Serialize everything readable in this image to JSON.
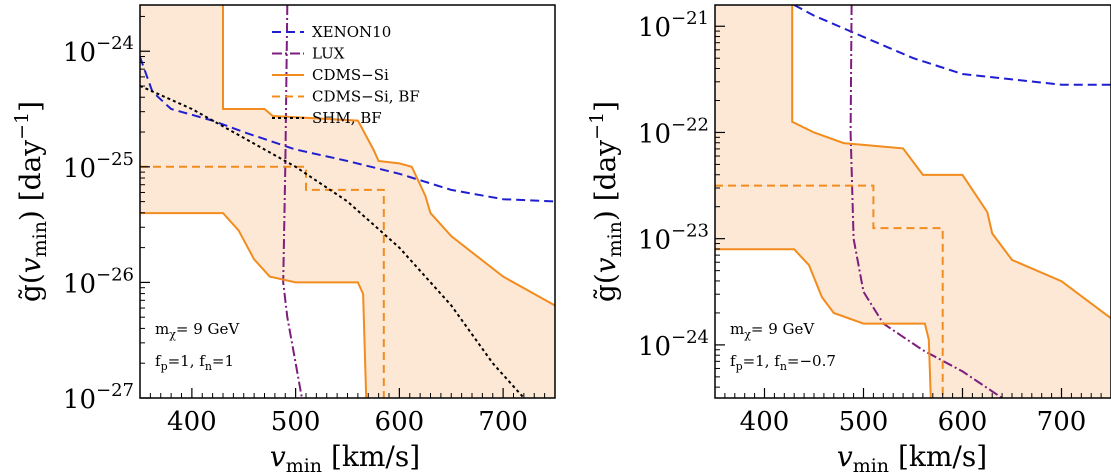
{
  "chart_data": [
    {
      "type": "line",
      "xlabel": "v_min [km/s]",
      "ylabel": "g̃(v_min) [day^-1]",
      "xlim": [
        350,
        750
      ],
      "ylim_log10": [
        -27,
        -23.6
      ],
      "y_scale": "log",
      "x_ticks": [
        400,
        500,
        600,
        700
      ],
      "y_ticks": [
        {
          "exp": -24,
          "base": "10",
          "sup": "−24"
        },
        {
          "exp": -25,
          "base": "10",
          "sup": "−25"
        },
        {
          "exp": -26,
          "base": "10",
          "sup": "−26"
        },
        {
          "exp": -27,
          "base": "10",
          "sup": "−27"
        }
      ],
      "legend_position": "top-right",
      "annotations": [
        "m_χ= 9 GeV",
        "f_p=1, f_n=1"
      ],
      "bands": [
        {
          "name": "CDMS-Si",
          "color": "#fde8d6",
          "upper": [
            [
              350,
              -23.6
            ],
            [
              430,
              -23.6
            ],
            [
              430,
              -24.5
            ],
            [
              470,
              -24.5
            ],
            [
              478,
              -24.56
            ],
            [
              560,
              -24.6
            ],
            [
              575,
              -24.85
            ],
            [
              580,
              -24.95
            ],
            [
              600,
              -24.97
            ],
            [
              612,
              -25.0
            ],
            [
              625,
              -25.25
            ],
            [
              630,
              -25.4
            ],
            [
              650,
              -25.6
            ],
            [
              700,
              -25.95
            ],
            [
              750,
              -26.2
            ]
          ],
          "lower": [
            [
              350,
              -25.4
            ],
            [
              430,
              -25.4
            ],
            [
              445,
              -25.55
            ],
            [
              460,
              -25.8
            ],
            [
              475,
              -25.95
            ],
            [
              500,
              -26.0
            ],
            [
              560,
              -26.0
            ],
            [
              565,
              -26.1
            ],
            [
              568,
              -27.0
            ],
            [
              750,
              -27.0
            ]
          ]
        }
      ],
      "series": [
        {
          "name": "XENON10",
          "color": "#1f1fd0",
          "dash": "9,5",
          "points": [
            [
              350,
              -24.05
            ],
            [
              362,
              -24.35
            ],
            [
              380,
              -24.5
            ],
            [
              420,
              -24.6
            ],
            [
              450,
              -24.7
            ],
            [
              500,
              -24.85
            ],
            [
              550,
              -24.95
            ],
            [
              600,
              -25.06
            ],
            [
              650,
              -25.2
            ],
            [
              700,
              -25.28
            ],
            [
              750,
              -25.3
            ]
          ]
        },
        {
          "name": "LUX",
          "color": "#7d1d7d",
          "dash": "10,3,2,3",
          "points": [
            [
              492,
              -23.6
            ],
            [
              490,
              -25.0
            ],
            [
              488,
              -26.0
            ],
            [
              492,
              -26.3
            ],
            [
              498,
              -26.6
            ],
            [
              506,
              -27.0
            ]
          ]
        },
        {
          "name": "CDMS-Si",
          "color": "#f28c1e",
          "dash": "",
          "steps": [
            [
              [
                430,
                -23.6
              ],
              [
                430,
                -24.5
              ],
              [
                470,
                -24.5
              ],
              [
                478,
                -24.56
              ],
              [
                560,
                -24.6
              ],
              [
                575,
                -24.85
              ],
              [
                580,
                -24.95
              ],
              [
                600,
                -24.97
              ],
              [
                612,
                -25.0
              ],
              [
                625,
                -25.25
              ],
              [
                630,
                -25.4
              ],
              [
                650,
                -25.6
              ],
              [
                700,
                -25.95
              ],
              [
                750,
                -26.2
              ]
            ],
            [
              [
                350,
                -25.4
              ],
              [
                430,
                -25.4
              ],
              [
                445,
                -25.55
              ],
              [
                460,
                -25.8
              ],
              [
                475,
                -25.95
              ],
              [
                500,
                -26.0
              ],
              [
                560,
                -26.0
              ],
              [
                565,
                -26.1
              ],
              [
                568,
                -27.0
              ]
            ]
          ]
        },
        {
          "name": "CDMS-Si, BF",
          "color": "#f28c1e",
          "dash": "8,5",
          "steps": [
            [
              [
                350,
                -25.0
              ],
              [
                510,
                -25.0
              ],
              [
                510,
                -25.2
              ],
              [
                585,
                -25.2
              ],
              [
                585,
                -27.0
              ]
            ]
          ]
        },
        {
          "name": "SHM, BF",
          "color": "#000000",
          "dash": "3,3",
          "points": [
            [
              350,
              -24.3
            ],
            [
              400,
              -24.5
            ],
            [
              450,
              -24.75
            ],
            [
              500,
              -25.0
            ],
            [
              550,
              -25.3
            ],
            [
              600,
              -25.7
            ],
            [
              650,
              -26.2
            ],
            [
              690,
              -26.7
            ],
            [
              720,
              -27.0
            ]
          ]
        }
      ]
    },
    {
      "type": "line",
      "xlabel": "v_min [km/s]",
      "ylabel": "g̃(v_min) [day^-1]",
      "xlim": [
        350,
        750
      ],
      "ylim_log10": [
        -24.5,
        -20.8
      ],
      "y_scale": "log",
      "x_ticks": [
        400,
        500,
        600,
        700
      ],
      "y_ticks": [
        {
          "exp": -21,
          "base": "10",
          "sup": "−21"
        },
        {
          "exp": -22,
          "base": "10",
          "sup": "−22"
        },
        {
          "exp": -23,
          "base": "10",
          "sup": "−23"
        },
        {
          "exp": -24,
          "base": "10",
          "sup": "−24"
        }
      ],
      "annotations": [
        "m_χ= 9 GeV",
        "f_p=1, f_n=−0.7"
      ],
      "bands": [
        {
          "name": "CDMS-Si",
          "color": "#fde8d6",
          "upper": [
            [
              350,
              -20.8
            ],
            [
              428,
              -20.8
            ],
            [
              428,
              -21.9
            ],
            [
              450,
              -22.0
            ],
            [
              480,
              -22.1
            ],
            [
              540,
              -22.15
            ],
            [
              560,
              -22.4
            ],
            [
              600,
              -22.4
            ],
            [
              625,
              -22.75
            ],
            [
              630,
              -22.95
            ],
            [
              650,
              -23.2
            ],
            [
              700,
              -23.4
            ],
            [
              750,
              -23.75
            ]
          ],
          "lower": [
            [
              350,
              -23.1
            ],
            [
              430,
              -23.1
            ],
            [
              445,
              -23.25
            ],
            [
              458,
              -23.55
            ],
            [
              470,
              -23.7
            ],
            [
              500,
              -23.8
            ],
            [
              562,
              -23.8
            ],
            [
              566,
              -23.95
            ],
            [
              568,
              -24.5
            ],
            [
              750,
              -24.5
            ]
          ]
        }
      ],
      "series": [
        {
          "name": "XENON10",
          "color": "#1f1fd0",
          "dash": "9,5",
          "points": [
            [
              430,
              -20.8
            ],
            [
              450,
              -20.9
            ],
            [
              500,
              -21.1
            ],
            [
              550,
              -21.3
            ],
            [
              600,
              -21.45
            ],
            [
              650,
              -21.5
            ],
            [
              700,
              -21.55
            ],
            [
              750,
              -21.55
            ]
          ]
        },
        {
          "name": "LUX",
          "color": "#7d1d7d",
          "dash": "10,3,2,3",
          "points": [
            [
              488,
              -20.8
            ],
            [
              487,
              -22.0
            ],
            [
              490,
              -23.0
            ],
            [
              500,
              -23.5
            ],
            [
              520,
              -23.8
            ],
            [
              560,
              -24.05
            ],
            [
              600,
              -24.25
            ],
            [
              640,
              -24.5
            ]
          ]
        },
        {
          "name": "CDMS-Si",
          "color": "#f28c1e",
          "dash": "",
          "steps": [
            [
              [
                428,
                -20.8
              ],
              [
                428,
                -21.9
              ],
              [
                450,
                -22.0
              ],
              [
                480,
                -22.1
              ],
              [
                540,
                -22.15
              ],
              [
                560,
                -22.4
              ],
              [
                600,
                -22.4
              ],
              [
                625,
                -22.75
              ],
              [
                630,
                -22.95
              ],
              [
                650,
                -23.2
              ],
              [
                700,
                -23.4
              ],
              [
                750,
                -23.75
              ]
            ],
            [
              [
                350,
                -23.1
              ],
              [
                430,
                -23.1
              ],
              [
                445,
                -23.25
              ],
              [
                458,
                -23.55
              ],
              [
                470,
                -23.7
              ],
              [
                500,
                -23.8
              ],
              [
                562,
                -23.8
              ],
              [
                566,
                -23.95
              ],
              [
                568,
                -24.5
              ]
            ]
          ]
        },
        {
          "name": "CDMS-Si, BF",
          "color": "#f28c1e",
          "dash": "8,5",
          "steps": [
            [
              [
                350,
                -22.5
              ],
              [
                510,
                -22.5
              ],
              [
                510,
                -22.9
              ],
              [
                580,
                -22.9
              ],
              [
                580,
                -24.5
              ]
            ]
          ]
        }
      ]
    }
  ],
  "labels": {
    "xlabel_main": "v",
    "xlabel_sub": "min",
    "xlabel_unit": " [km/s]",
    "ylabel_pre": "g̃(",
    "ylabel_v": "v",
    "ylabel_sub": "min",
    "ylabel_mid": ") [day",
    "ylabel_sup": "−1",
    "ylabel_end": "]",
    "panel1_annot_mass": "m",
    "panel1_annot_mass_sub": "χ",
    "panel1_annot_mass_val": "= 9 GeV",
    "panel1_annot_f1": "f",
    "panel1_annot_f1_sub": "p",
    "panel1_annot_f1_val": "=1, f",
    "panel1_annot_f2_sub": "n",
    "panel1_annot_f2_val": "=1",
    "panel2_annot_f2_val": "=−0.7"
  },
  "legend": [
    {
      "label": "XENON10",
      "color": "#1f1fd0",
      "dash": "9,5"
    },
    {
      "label": "LUX",
      "color": "#7d1d7d",
      "dash": "10,3,2,3"
    },
    {
      "label": "CDMS−Si",
      "color": "#f28c1e",
      "dash": ""
    },
    {
      "label": "CDMS−Si, BF",
      "color": "#f28c1e",
      "dash": "8,5"
    },
    {
      "label": "SHM, BF",
      "color": "#000000",
      "dash": "3,3"
    }
  ]
}
